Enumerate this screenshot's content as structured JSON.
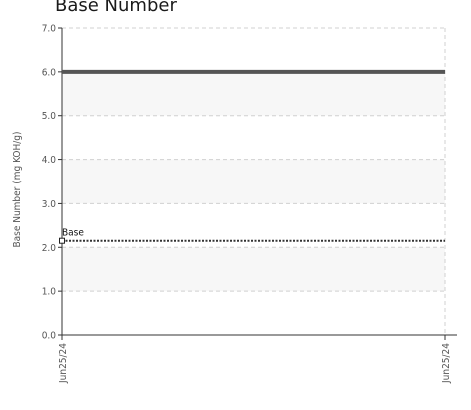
{
  "chart_data": {
    "type": "line",
    "title": "Base Number",
    "xlabel": "",
    "ylabel": "Base Number (mg KOH/g)",
    "ylim": [
      0,
      7
    ],
    "y_ticks": [
      "0.0",
      "1.0",
      "2.0",
      "3.0",
      "4.0",
      "5.0",
      "6.0",
      "7.0"
    ],
    "x_ticks": [
      "Jun25/24",
      "Jun25/24"
    ],
    "grid": true,
    "series": [
      {
        "name": "",
        "style": "solid",
        "color": "#555555",
        "x": [
          "Jun25/24",
          "Jun25/24"
        ],
        "values": [
          6.0,
          6.0
        ]
      },
      {
        "name": "Base",
        "style": "dotted",
        "color": "#333333",
        "x": [
          "Jun25/24",
          "Jun25/24"
        ],
        "values": [
          2.15,
          2.15
        ]
      }
    ],
    "annotations": [
      "Base"
    ]
  }
}
